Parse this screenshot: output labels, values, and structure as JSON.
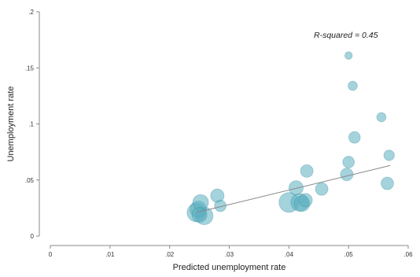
{
  "chart_data": {
    "type": "scatter",
    "title": "",
    "xlabel": "Predicted unemployment rate",
    "ylabel": "Unemployment rate",
    "xlim": [
      0,
      0.06
    ],
    "ylim": [
      0,
      0.2
    ],
    "x_ticks": [
      {
        "value": 0,
        "label": "0"
      },
      {
        "value": 0.01,
        "label": ".01"
      },
      {
        "value": 0.02,
        "label": ".02"
      },
      {
        "value": 0.03,
        "label": ".03"
      },
      {
        "value": 0.04,
        "label": ".04"
      },
      {
        "value": 0.05,
        "label": ".05"
      },
      {
        "value": 0.06,
        "label": ".06"
      }
    ],
    "y_ticks": [
      {
        "value": 0,
        "label": "0"
      },
      {
        "value": 0.05,
        "label": ".05"
      },
      {
        "value": 0.1,
        "label": ".1"
      },
      {
        "value": 0.15,
        "label": ".15"
      },
      {
        "value": 0.2,
        "label": ".2"
      }
    ],
    "grid": false,
    "annotation": "R-squared = 0.45",
    "marker_color": "#5aaebf",
    "marker_dark_color": "#2f8196",
    "fit_line_color": "#8a8a8a",
    "fit_line": {
      "x": [
        0.0245,
        0.057
      ],
      "y": [
        0.021,
        0.063
      ]
    },
    "points": [
      {
        "x": 0.0252,
        "y": 0.03,
        "weight": 9
      },
      {
        "x": 0.0248,
        "y": 0.024,
        "weight": 10
      },
      {
        "x": 0.0245,
        "y": 0.021,
        "weight": 14
      },
      {
        "x": 0.0258,
        "y": 0.018,
        "weight": 12
      },
      {
        "x": 0.025,
        "y": 0.019,
        "weight": 8
      },
      {
        "x": 0.028,
        "y": 0.036,
        "weight": 6
      },
      {
        "x": 0.0285,
        "y": 0.027,
        "weight": 4
      },
      {
        "x": 0.04,
        "y": 0.03,
        "weight": 16
      },
      {
        "x": 0.0412,
        "y": 0.043,
        "weight": 7
      },
      {
        "x": 0.0418,
        "y": 0.03,
        "weight": 12
      },
      {
        "x": 0.0422,
        "y": 0.029,
        "weight": 9
      },
      {
        "x": 0.0428,
        "y": 0.032,
        "weight": 6
      },
      {
        "x": 0.043,
        "y": 0.058,
        "weight": 5
      },
      {
        "x": 0.0455,
        "y": 0.042,
        "weight": 5
      },
      {
        "x": 0.0497,
        "y": 0.055,
        "weight": 5
      },
      {
        "x": 0.05,
        "y": 0.066,
        "weight": 4
      },
      {
        "x": 0.05,
        "y": 0.161,
        "weight": 1
      },
      {
        "x": 0.0507,
        "y": 0.134,
        "weight": 2
      },
      {
        "x": 0.051,
        "y": 0.088,
        "weight": 4
      },
      {
        "x": 0.0555,
        "y": 0.106,
        "weight": 2
      },
      {
        "x": 0.0568,
        "y": 0.072,
        "weight": 3
      },
      {
        "x": 0.0565,
        "y": 0.047,
        "weight": 5
      }
    ]
  }
}
